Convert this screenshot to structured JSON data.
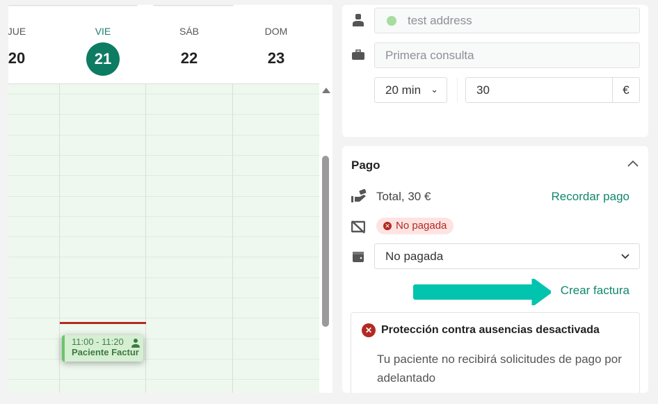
{
  "calendar": {
    "days": [
      {
        "name": "JUE",
        "num": "20"
      },
      {
        "name": "VIE",
        "num": "21",
        "today": true
      },
      {
        "name": "SÁB",
        "num": "22"
      },
      {
        "name": "DOM",
        "num": "23"
      }
    ],
    "event": {
      "time": "11:00 - 11:20",
      "title": "Paciente Factur",
      "color": "#6cc46a"
    }
  },
  "details": {
    "address": "test address",
    "address_status_color": "#a8dca0",
    "service": "Primera consulta",
    "duration": "20 min",
    "price": "30",
    "currency": "€"
  },
  "payment": {
    "title": "Pago",
    "total": "Total, 30 €",
    "remind_link": "Recordar pago",
    "status_badge": "No pagada",
    "status_select": "No pagada",
    "invoice_link": "Crear factura",
    "annotation_arrow_color": "#00c4ad",
    "alert": {
      "title": "Protección contra ausencias desactivada",
      "body": "Tu paciente no recibirá solicitudes de pago por adelantado"
    }
  },
  "colors": {
    "accent": "#0e7b63",
    "danger": "#b22a22"
  }
}
